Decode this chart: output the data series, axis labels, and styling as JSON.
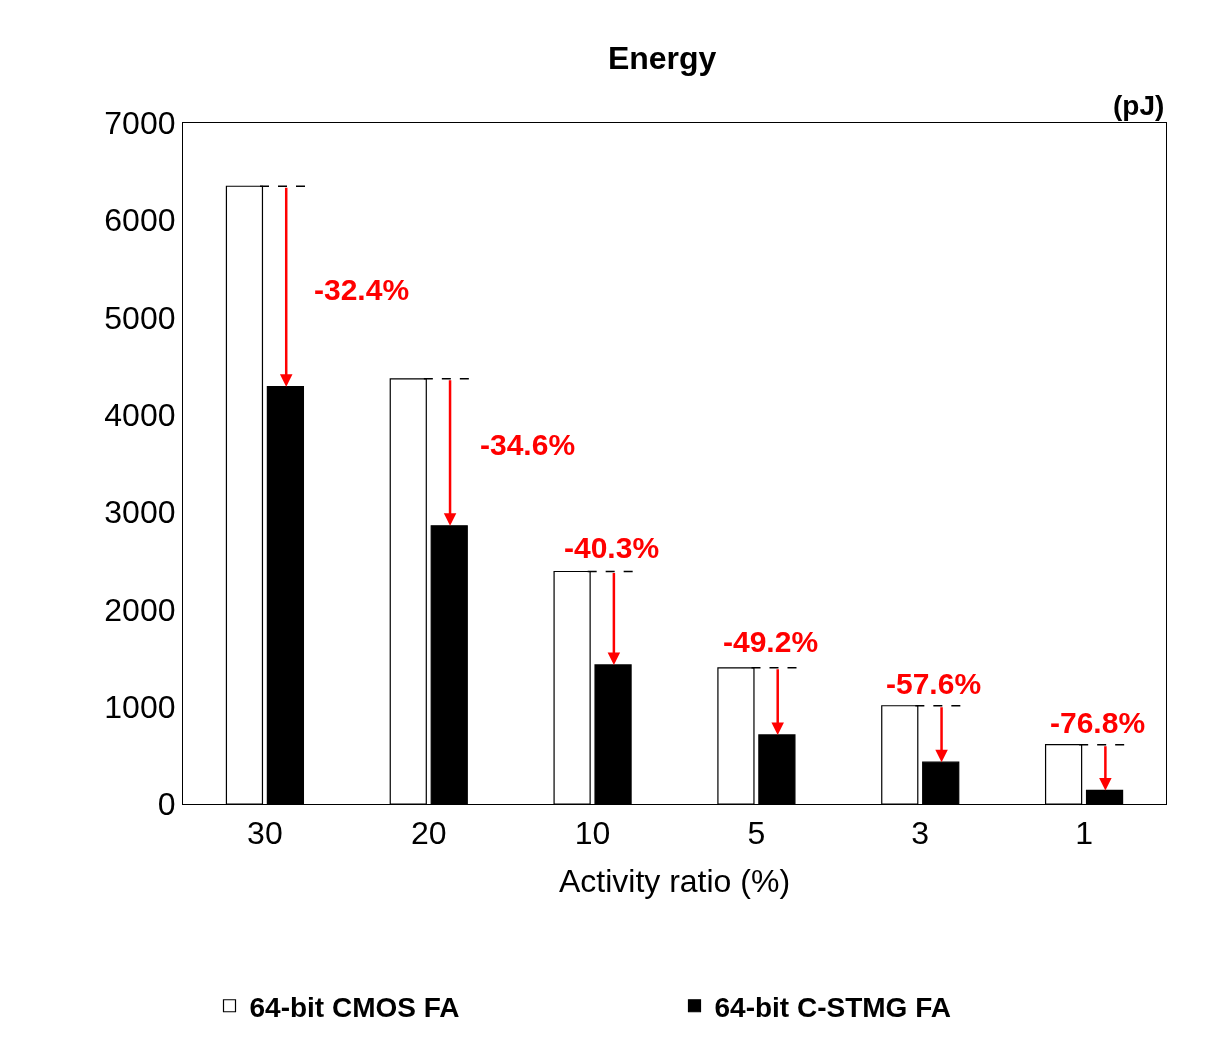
{
  "chart_data": {
    "type": "bar",
    "title": "Energy",
    "ylabel": "(pJ)",
    "xlabel": "Activity ratio (%)",
    "categories": [
      "30",
      "20",
      "10",
      "5",
      "3",
      "1"
    ],
    "series": [
      {
        "name": "64-bit CMOS FA",
        "color": "#ffffff",
        "values": [
          6350,
          4370,
          2390,
          1400,
          1010,
          610
        ]
      },
      {
        "name": "64-bit C-STMG FA",
        "color": "#000000",
        "values": [
          4290,
          2860,
          1430,
          710,
          430,
          140
        ]
      }
    ],
    "ylim": [
      0,
      7000
    ],
    "yticks": [
      0,
      1000,
      2000,
      3000,
      4000,
      5000,
      6000,
      7000
    ],
    "grid": false,
    "legend": "bottom",
    "annotations": [
      "-32.4%",
      {
        "text": "-34.6%",
        "x": "20",
        "y": 2860
      },
      {
        "text": "-40.3%",
        "x": "10",
        "y": 2390
      },
      {
        "text": "-49.2%",
        "x": "5",
        "y": 710
      },
      {
        "text": "-57.6%",
        "x": "3",
        "y": 430
      },
      {
        "text": "-76.8%",
        "x": "1",
        "y": 140
      }
    ]
  }
}
